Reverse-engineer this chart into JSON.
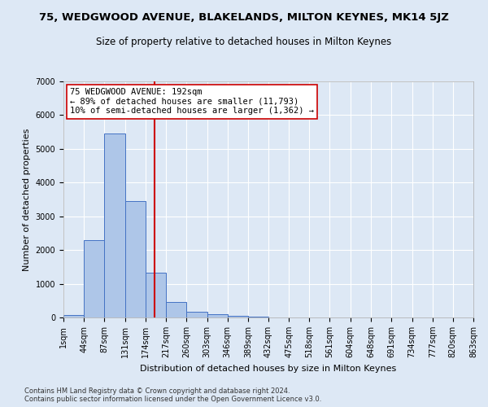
{
  "title": "75, WEDGWOOD AVENUE, BLAKELANDS, MILTON KEYNES, MK14 5JZ",
  "subtitle": "Size of property relative to detached houses in Milton Keynes",
  "xlabel": "Distribution of detached houses by size in Milton Keynes",
  "ylabel": "Number of detached properties",
  "footer_line1": "Contains HM Land Registry data © Crown copyright and database right 2024.",
  "footer_line2": "Contains public sector information licensed under the Open Government Licence v3.0.",
  "bin_edges": [
    1,
    44,
    87,
    131,
    174,
    217,
    260,
    303,
    346,
    389,
    432,
    475,
    518,
    561,
    604,
    648,
    691,
    734,
    777,
    820,
    863
  ],
  "bin_labels": [
    "1sqm",
    "44sqm",
    "87sqm",
    "131sqm",
    "174sqm",
    "217sqm",
    "260sqm",
    "303sqm",
    "346sqm",
    "389sqm",
    "432sqm",
    "475sqm",
    "518sqm",
    "561sqm",
    "604sqm",
    "648sqm",
    "691sqm",
    "734sqm",
    "777sqm",
    "820sqm",
    "863sqm"
  ],
  "bar_heights": [
    75,
    2300,
    5450,
    3450,
    1320,
    460,
    160,
    90,
    55,
    35,
    0,
    0,
    0,
    0,
    0,
    0,
    0,
    0,
    0,
    0
  ],
  "bar_color": "#aec6e8",
  "bar_edge_color": "#4472c4",
  "property_value": 192,
  "vline_color": "#cc0000",
  "annotation_text": "75 WEDGWOOD AVENUE: 192sqm\n← 89% of detached houses are smaller (11,793)\n10% of semi-detached houses are larger (1,362) →",
  "annotation_box_color": "#ffffff",
  "annotation_box_edge": "#cc0000",
  "ylim": [
    0,
    7000
  ],
  "yticks": [
    0,
    1000,
    2000,
    3000,
    4000,
    5000,
    6000,
    7000
  ],
  "background_color": "#dde8f5",
  "grid_color": "#ffffff",
  "title_fontsize": 9.5,
  "subtitle_fontsize": 8.5,
  "axis_label_fontsize": 8,
  "tick_fontsize": 7,
  "footer_fontsize": 6,
  "annotation_fontsize": 7.5
}
